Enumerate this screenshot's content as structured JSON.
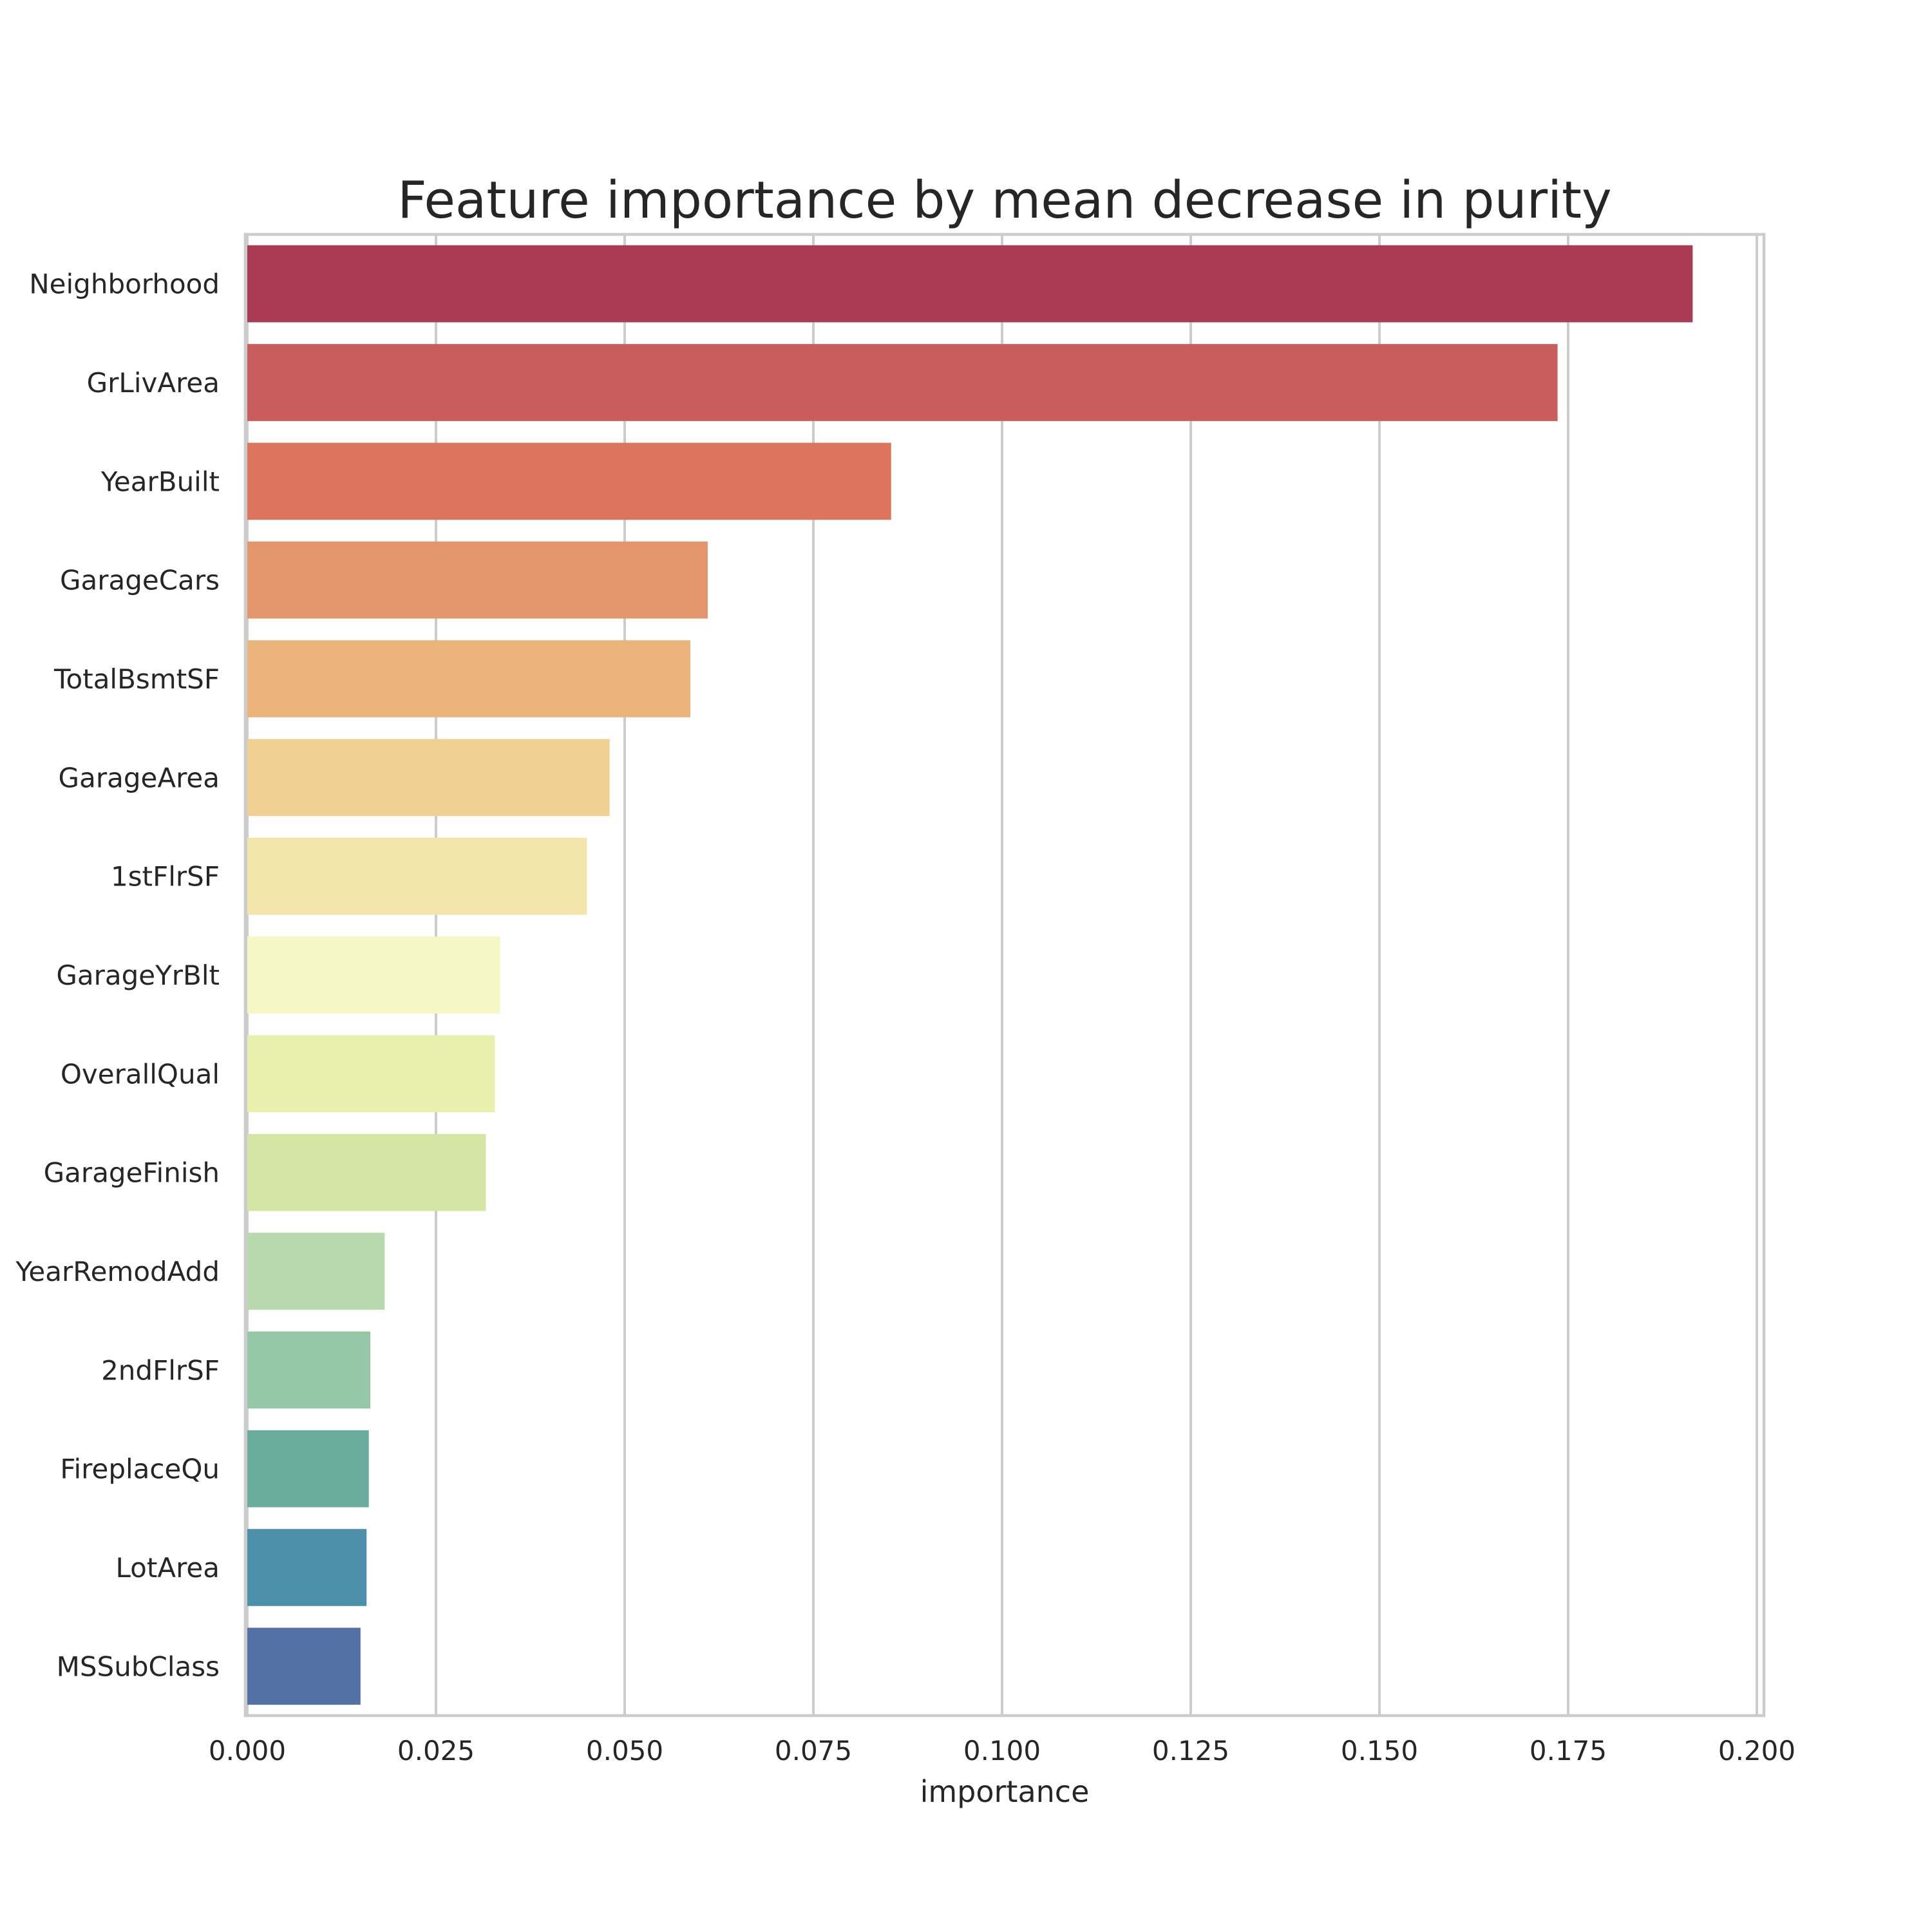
{
  "chart_data": {
    "type": "bar",
    "orientation": "horizontal",
    "title": "Feature importance by mean decrease in purity",
    "xlabel": "importance",
    "ylabel": "",
    "xlim": [
      0,
      0.2
    ],
    "grid": true,
    "xticks": [
      "0.000",
      "0.025",
      "0.050",
      "0.075",
      "0.100",
      "0.125",
      "0.150",
      "0.175",
      "0.200"
    ],
    "categories": [
      "Neighborhood",
      "GrLivArea",
      "YearBuilt",
      "GarageCars",
      "TotalBsmtSF",
      "GarageArea",
      "1stFlrSF",
      "GarageYrBlt",
      "OverallQual",
      "GarageFinish",
      "YearRemodAdd",
      "2ndFlrSF",
      "FireplaceQu",
      "LotArea",
      "MSSubClass"
    ],
    "values": [
      0.1915,
      0.1736,
      0.0853,
      0.061,
      0.0587,
      0.048,
      0.045,
      0.0335,
      0.0328,
      0.0316,
      0.0182,
      0.0163,
      0.0161,
      0.0158,
      0.015
    ],
    "colors": [
      "#ab3a53",
      "#c95d5e",
      "#dd755c",
      "#e5956b",
      "#ebb47c",
      "#efcf92",
      "#f4e6ab",
      "#f7f7c5",
      "#e7f0ac",
      "#d5e5a3",
      "#b7d9ab",
      "#93c7a6",
      "#6aad9f",
      "#4d8fab",
      "#5271a5"
    ]
  }
}
